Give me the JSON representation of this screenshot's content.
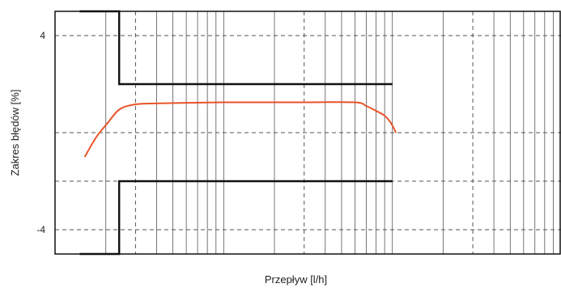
{
  "chart_data": {
    "type": "line",
    "title": "",
    "xlabel": "Przepływ [l/h]",
    "ylabel": "Zakres błędów [%]",
    "x_scale": "log",
    "xlim": [
      1,
      1000
    ],
    "ylim": [
      -5,
      5
    ],
    "yticks": [
      {
        "value": 4,
        "label": "4"
      },
      {
        "value": -4,
        "label": "-4"
      }
    ],
    "dashed_y_gridlines": [
      4,
      0,
      -2,
      -4
    ],
    "dashed_x_gridlines": [
      3,
      30,
      300
    ],
    "grid": true,
    "legend": "none",
    "series": [
      {
        "role": "upper-error-limit",
        "color": "#111111",
        "x": [
          1.4,
          2.4,
          2.4,
          100
        ],
        "y": [
          5,
          5,
          2,
          2
        ]
      },
      {
        "role": "lower-error-limit",
        "color": "#111111",
        "x": [
          1.4,
          2.4,
          2.4,
          100
        ],
        "y": [
          -5,
          -5,
          -2,
          -2
        ]
      },
      {
        "role": "measured-error-curve",
        "color": "#e8532a",
        "x": [
          1.5,
          1.75,
          2.05,
          2.4,
          2.9,
          3.6,
          5.1,
          10,
          30,
          60,
          70,
          80,
          90,
          98,
          105
        ],
        "y": [
          -1.0,
          -0.2,
          0.4,
          0.95,
          1.15,
          1.2,
          1.22,
          1.25,
          1.25,
          1.25,
          1.1,
          0.9,
          0.7,
          0.4,
          0.0
        ]
      }
    ]
  },
  "colors": {
    "axes": "#111111",
    "grid_solid": "#555555",
    "grid_dashed": "#555555",
    "limit_lines": "#111111",
    "curve": "#e8532a"
  }
}
